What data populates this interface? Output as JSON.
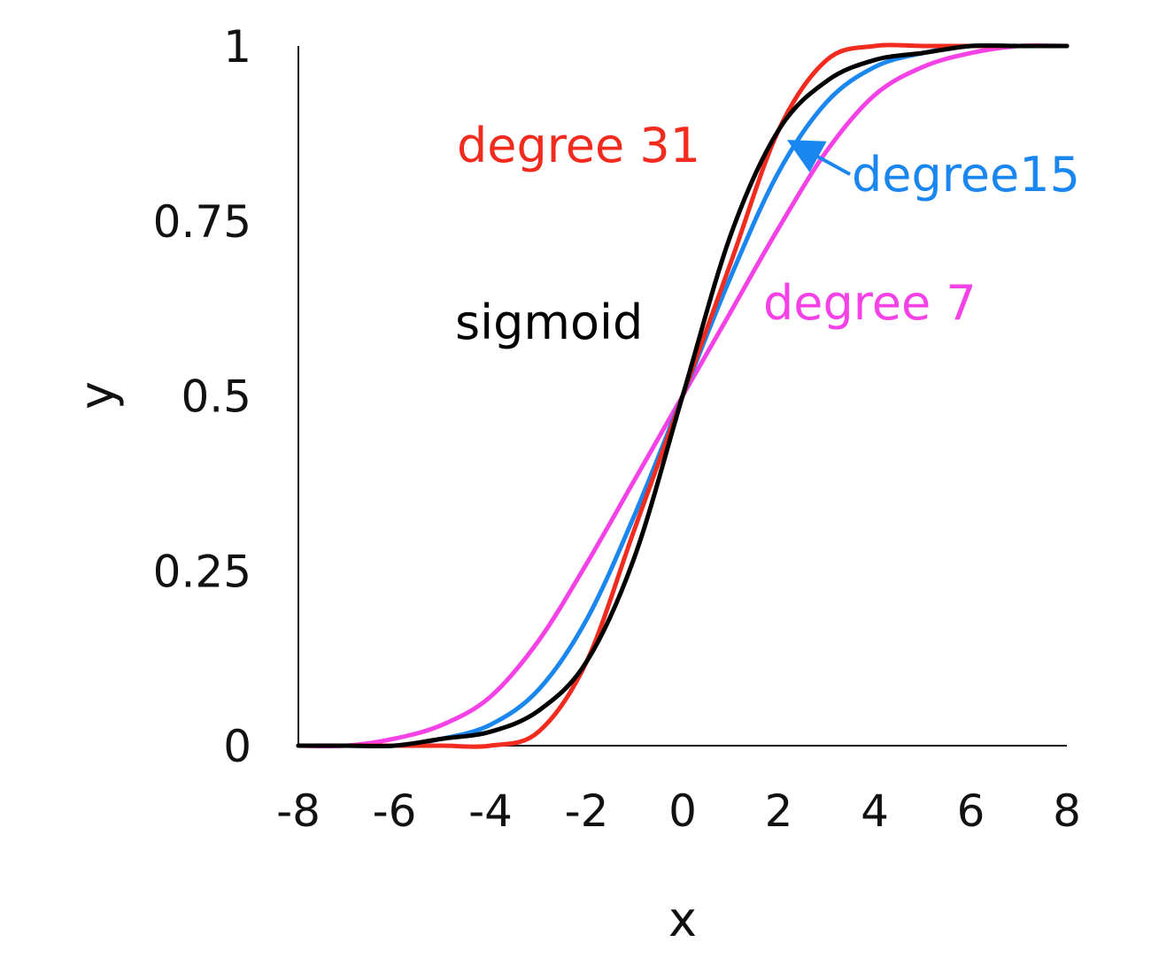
{
  "chart_data": {
    "type": "line",
    "title": "",
    "xlabel": "x",
    "ylabel": "y",
    "xlim": [
      -8,
      8
    ],
    "ylim": [
      0,
      1
    ],
    "x_ticks": [
      "-8",
      "-6",
      "-4",
      "-2",
      "0",
      "2",
      "4",
      "6",
      "8"
    ],
    "y_ticks": [
      "0",
      "0.25",
      "0.5",
      "0.75",
      "1"
    ],
    "grid": false,
    "legend": "none",
    "x": [
      -8,
      -7,
      -6,
      -5,
      -4,
      -3,
      -2,
      -1,
      0,
      1,
      2,
      3,
      4,
      5,
      6,
      7,
      8
    ],
    "series": [
      {
        "name": "degree 7",
        "color": "#f542e6",
        "values": [
          0.0,
          0.0,
          0.01,
          0.03,
          0.07,
          0.15,
          0.26,
          0.38,
          0.5,
          0.62,
          0.74,
          0.85,
          0.93,
          0.97,
          0.99,
          1.0,
          1.0
        ]
      },
      {
        "name": "degree15",
        "color": "#1a87f0",
        "values": [
          0.0,
          0.0,
          0.0,
          0.01,
          0.03,
          0.08,
          0.18,
          0.33,
          0.5,
          0.67,
          0.82,
          0.92,
          0.97,
          0.99,
          1.0,
          1.0,
          1.0
        ]
      },
      {
        "name": "degree 31",
        "color": "#f22b1f",
        "values": [
          0.0,
          0.0,
          0.0,
          0.0,
          0.0,
          0.02,
          0.12,
          0.31,
          0.5,
          0.69,
          0.88,
          0.98,
          1.0,
          1.0,
          1.0,
          1.0,
          1.0
        ]
      },
      {
        "name": "sigmoid",
        "color": "#000000",
        "values": [
          0.0,
          0.0,
          0.0,
          0.01,
          0.02,
          0.05,
          0.12,
          0.27,
          0.5,
          0.73,
          0.88,
          0.95,
          0.98,
          0.99,
          1.0,
          1.0,
          1.0
        ]
      }
    ],
    "annotations": [
      {
        "text": "degree 31",
        "color": "#f22b1f"
      },
      {
        "text": "degree15",
        "color": "#1a87f0"
      },
      {
        "text": "sigmoid",
        "color": "#000000"
      },
      {
        "text": "degree 7",
        "color": "#f542e6"
      }
    ]
  }
}
